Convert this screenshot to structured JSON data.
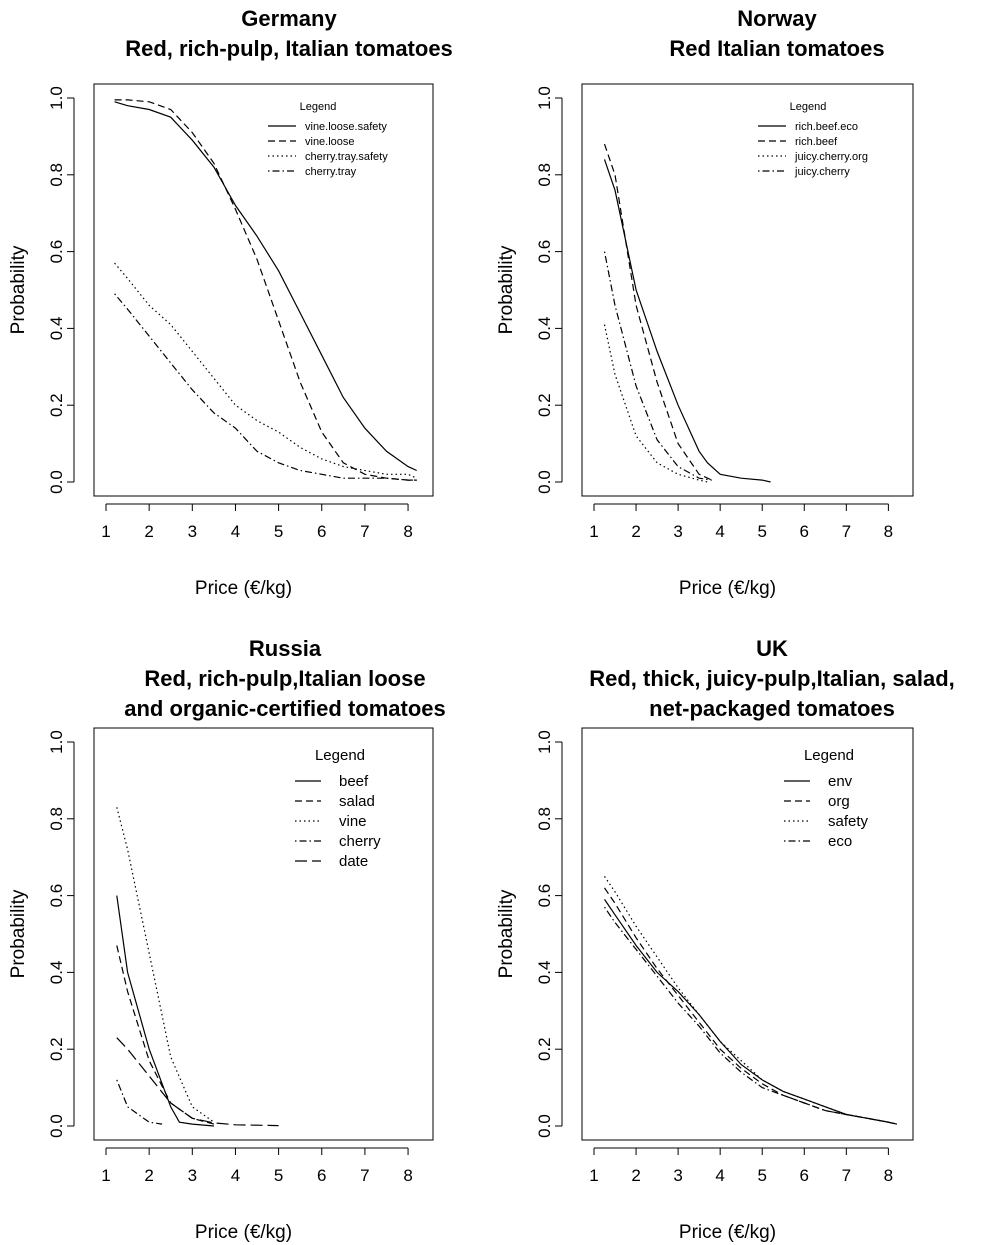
{
  "chart_data": [
    {
      "type": "line",
      "title": [
        "Germany",
        "Red, rich-pulp, Italian tomatoes"
      ],
      "xlabel": "Price (€/kg)",
      "ylabel": "Probability",
      "xlim": [
        1,
        8.3
      ],
      "ylim": [
        0,
        1
      ],
      "xticks": [
        "1",
        "2",
        "3",
        "4",
        "5",
        "6",
        "7",
        "8"
      ],
      "yticks": [
        "0.0",
        "0.2",
        "0.4",
        "0.6",
        "0.8",
        "1.0"
      ],
      "legend_title": "Legend",
      "legend_position": "top-right",
      "legend_size": "small",
      "series": [
        {
          "name": "vine.loose.safety",
          "line": "solid",
          "x": [
            1.2,
            1.5,
            2.0,
            2.5,
            3.0,
            3.5,
            4.0,
            4.5,
            5.0,
            5.5,
            6.0,
            6.5,
            7.0,
            7.5,
            8.0,
            8.2
          ],
          "y": [
            0.99,
            0.98,
            0.97,
            0.95,
            0.89,
            0.82,
            0.72,
            0.64,
            0.55,
            0.44,
            0.33,
            0.22,
            0.14,
            0.08,
            0.04,
            0.03
          ]
        },
        {
          "name": "vine.loose",
          "line": "dashed",
          "x": [
            1.2,
            1.5,
            2.0,
            2.5,
            3.0,
            3.5,
            4.0,
            4.5,
            5.0,
            5.5,
            6.0,
            6.5,
            7.0,
            7.5,
            8.0,
            8.2
          ],
          "y": [
            0.995,
            0.995,
            0.99,
            0.97,
            0.91,
            0.83,
            0.71,
            0.58,
            0.42,
            0.26,
            0.13,
            0.05,
            0.02,
            0.01,
            0.005,
            0.005
          ]
        },
        {
          "name": "cherry.tray.safety",
          "line": "dotted",
          "x": [
            1.2,
            1.5,
            2.0,
            2.5,
            3.0,
            3.5,
            4.0,
            4.5,
            5.0,
            5.5,
            6.0,
            6.5,
            7.0,
            7.5,
            8.0,
            8.2
          ],
          "y": [
            0.57,
            0.53,
            0.46,
            0.41,
            0.34,
            0.27,
            0.2,
            0.16,
            0.13,
            0.09,
            0.06,
            0.04,
            0.03,
            0.02,
            0.02,
            0.01
          ]
        },
        {
          "name": "cherry.tray",
          "line": "dotdash",
          "x": [
            1.2,
            1.5,
            2.0,
            2.5,
            3.0,
            3.5,
            4.0,
            4.5,
            5.0,
            5.5,
            6.0,
            6.5,
            7.0,
            7.5,
            8.0,
            8.2
          ],
          "y": [
            0.49,
            0.45,
            0.38,
            0.31,
            0.24,
            0.18,
            0.14,
            0.08,
            0.05,
            0.03,
            0.02,
            0.01,
            0.01,
            0.01,
            0.005,
            0.005
          ]
        }
      ]
    },
    {
      "type": "line",
      "title": [
        "Norway",
        "Red Italian tomatoes"
      ],
      "xlabel": "Price (€/kg)",
      "ylabel": "Probability",
      "xlim": [
        1,
        8.3
      ],
      "ylim": [
        0,
        1
      ],
      "xticks": [
        "1",
        "2",
        "3",
        "4",
        "5",
        "6",
        "7",
        "8"
      ],
      "yticks": [
        "0.0",
        "0.2",
        "0.4",
        "0.6",
        "0.8",
        "1.0"
      ],
      "legend_title": "Legend",
      "legend_position": "top-right",
      "legend_size": "small",
      "series": [
        {
          "name": "rich.beef.eco",
          "line": "solid",
          "x": [
            1.25,
            1.5,
            2.0,
            2.5,
            3.0,
            3.5,
            3.7,
            4.0,
            4.5,
            5.0,
            5.2
          ],
          "y": [
            0.84,
            0.76,
            0.5,
            0.34,
            0.2,
            0.08,
            0.05,
            0.02,
            0.01,
            0.005,
            0.0
          ]
        },
        {
          "name": "rich.beef",
          "line": "dashed",
          "x": [
            1.25,
            1.5,
            2.0,
            2.5,
            3.0,
            3.5,
            3.8
          ],
          "y": [
            0.88,
            0.8,
            0.46,
            0.26,
            0.1,
            0.02,
            0.005
          ]
        },
        {
          "name": "juicy.cherry.org",
          "line": "dotted",
          "x": [
            1.25,
            1.5,
            2.0,
            2.5,
            3.0,
            3.5,
            3.7
          ],
          "y": [
            0.41,
            0.28,
            0.12,
            0.05,
            0.02,
            0.005,
            0.0
          ]
        },
        {
          "name": "juicy.cherry",
          "line": "dotdash",
          "x": [
            1.25,
            1.5,
            2.0,
            2.5,
            3.0,
            3.5,
            3.8
          ],
          "y": [
            0.6,
            0.46,
            0.25,
            0.11,
            0.04,
            0.01,
            0.005
          ]
        }
      ]
    },
    {
      "type": "line",
      "title": [
        "Russia",
        "Red, rich-pulp,Italian loose",
        "and organic-certified tomatoes"
      ],
      "xlabel": "Price (€/kg)",
      "ylabel": "Probability",
      "xlim": [
        1,
        8.3
      ],
      "ylim": [
        0,
        1
      ],
      "xticks": [
        "1",
        "2",
        "3",
        "4",
        "5",
        "6",
        "7",
        "8"
      ],
      "yticks": [
        "0.0",
        "0.2",
        "0.4",
        "0.6",
        "0.8",
        "1.0"
      ],
      "legend_title": "Legend",
      "legend_position": "top-right",
      "legend_size": "large",
      "series": [
        {
          "name": "beef",
          "line": "solid",
          "x": [
            1.25,
            1.5,
            2.0,
            2.5,
            2.7,
            3.0,
            3.5
          ],
          "y": [
            0.6,
            0.4,
            0.2,
            0.05,
            0.01,
            0.005,
            0.0
          ]
        },
        {
          "name": "salad",
          "line": "dashed",
          "x": [
            1.25,
            1.5,
            2.0,
            2.5,
            3.0,
            3.5
          ],
          "y": [
            0.47,
            0.35,
            0.17,
            0.06,
            0.02,
            0.005
          ]
        },
        {
          "name": "vine",
          "line": "dotted",
          "x": [
            1.25,
            1.5,
            2.0,
            2.5,
            3.0,
            3.5
          ],
          "y": [
            0.83,
            0.72,
            0.45,
            0.18,
            0.05,
            0.01
          ]
        },
        {
          "name": "cherry",
          "line": "dotdash",
          "x": [
            1.25,
            1.5,
            2.0,
            2.3
          ],
          "y": [
            0.12,
            0.05,
            0.01,
            0.005
          ]
        },
        {
          "name": "date",
          "line": "longdash",
          "x": [
            1.25,
            1.5,
            2.0,
            2.5,
            3.0,
            3.5,
            4.0,
            4.5,
            5.0
          ],
          "y": [
            0.23,
            0.2,
            0.13,
            0.06,
            0.02,
            0.008,
            0.003,
            0.002,
            0.001
          ]
        }
      ]
    },
    {
      "type": "line",
      "title": [
        "UK",
        "Red, thick, juicy-pulp,Italian, salad,",
        "net-packaged tomatoes"
      ],
      "xlabel": "Price (€/kg)",
      "ylabel": "Probability",
      "xlim": [
        1,
        8.3
      ],
      "ylim": [
        0,
        1
      ],
      "xticks": [
        "1",
        "2",
        "3",
        "4",
        "5",
        "6",
        "7",
        "8"
      ],
      "yticks": [
        "0.0",
        "0.2",
        "0.4",
        "0.6",
        "0.8",
        "1.0"
      ],
      "legend_title": "Legend",
      "legend_position": "top-right",
      "legend_size": "large",
      "series": [
        {
          "name": "env",
          "line": "solid",
          "x": [
            1.25,
            1.5,
            2.0,
            2.5,
            3.0,
            3.5,
            4.0,
            4.5,
            5.0,
            5.5,
            6.0,
            6.5,
            7.0,
            7.5,
            8.0,
            8.2
          ],
          "y": [
            0.59,
            0.55,
            0.47,
            0.4,
            0.35,
            0.29,
            0.22,
            0.16,
            0.12,
            0.09,
            0.07,
            0.05,
            0.03,
            0.02,
            0.01,
            0.005
          ]
        },
        {
          "name": "org",
          "line": "dashed",
          "x": [
            1.25,
            1.5,
            2.0,
            2.5,
            3.0,
            3.5,
            4.0,
            4.5,
            5.0,
            5.5,
            6.0,
            6.5,
            7.0,
            7.5,
            8.0,
            8.2
          ],
          "y": [
            0.62,
            0.58,
            0.49,
            0.41,
            0.34,
            0.27,
            0.2,
            0.15,
            0.11,
            0.08,
            0.06,
            0.04,
            0.03,
            0.02,
            0.01,
            0.005
          ]
        },
        {
          "name": "safety",
          "line": "dotted",
          "x": [
            1.25,
            1.5,
            2.0,
            2.5,
            3.0,
            3.5,
            4.0,
            4.5,
            5.0,
            5.5,
            6.0,
            6.5,
            7.0,
            7.5,
            8.0,
            8.2
          ],
          "y": [
            0.65,
            0.61,
            0.52,
            0.44,
            0.36,
            0.29,
            0.22,
            0.17,
            0.12,
            0.09,
            0.07,
            0.05,
            0.03,
            0.02,
            0.01,
            0.005
          ]
        },
        {
          "name": "eco",
          "line": "dotdash",
          "x": [
            1.25,
            1.5,
            2.0,
            2.5,
            3.0,
            3.5,
            4.0,
            4.5,
            5.0,
            5.5,
            6.0,
            6.5,
            7.0,
            7.5,
            8.0,
            8.2
          ],
          "y": [
            0.57,
            0.53,
            0.46,
            0.39,
            0.32,
            0.26,
            0.19,
            0.14,
            0.1,
            0.08,
            0.06,
            0.04,
            0.03,
            0.02,
            0.01,
            0.005
          ]
        }
      ]
    }
  ]
}
